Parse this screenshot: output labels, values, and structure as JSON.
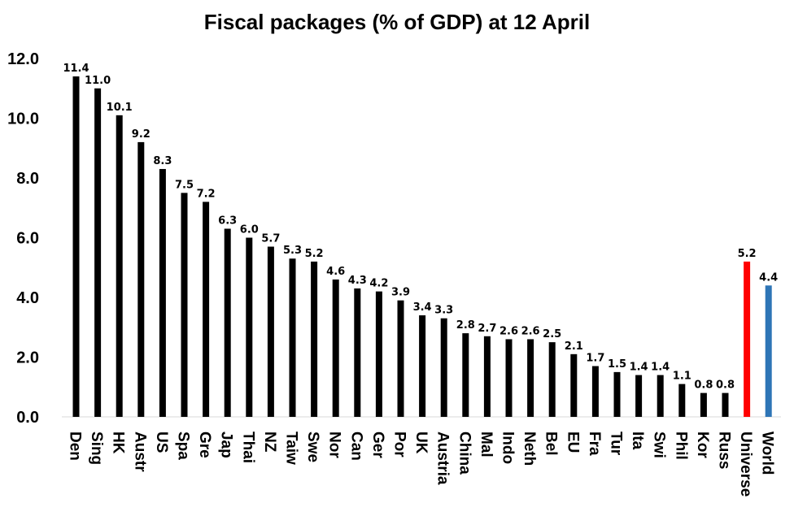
{
  "chart_data": {
    "type": "bar",
    "title": "Fiscal packages (% of GDP) at 12 April",
    "xlabel": "",
    "ylabel": "",
    "ylim": [
      0,
      12
    ],
    "yticks": [
      "0.0",
      "2.0",
      "4.0",
      "6.0",
      "8.0",
      "10.0",
      "12.0"
    ],
    "grid": false,
    "categories": [
      "Den",
      "Sing",
      "HK",
      "Austr",
      "US",
      "Spa",
      "Gre",
      "Jap",
      "Thai",
      "NZ",
      "Taiw",
      "Swe",
      "Nor",
      "Can",
      "Ger",
      "Por",
      "UK",
      "Austria",
      "China",
      "Mal",
      "Indo",
      "Neth",
      "Bel",
      "EU",
      "Fra",
      "Tur",
      "Ita",
      "Swi",
      "Phil",
      "Kor",
      "Russ",
      "Universe",
      "World"
    ],
    "values": [
      11.4,
      11.0,
      10.1,
      9.2,
      8.3,
      7.5,
      7.2,
      6.3,
      6.0,
      5.7,
      5.3,
      5.2,
      4.6,
      4.3,
      4.2,
      3.9,
      3.4,
      3.3,
      2.8,
      2.7,
      2.6,
      2.6,
      2.5,
      2.1,
      1.7,
      1.5,
      1.4,
      1.4,
      1.1,
      0.8,
      0.8,
      5.2,
      4.4
    ],
    "data_labels": [
      "11.4",
      "11.0",
      "10.1",
      "9.2",
      "8.3",
      "7.5",
      "7.2",
      "6.3",
      "6.0",
      "5.7",
      "5.3",
      "5.2",
      "4.6",
      "4.3",
      "4.2",
      "3.9",
      "3.4",
      "3.3",
      "2.8",
      "2.7",
      "2.6",
      "2.6",
      "2.5",
      "2.1",
      "1.7",
      "1.5",
      "1.4",
      "1.4",
      "1.1",
      "0.8",
      "0.8",
      "5.2",
      "4.4"
    ],
    "colors": {
      "default": "#000000",
      "Universe": "#ff0000",
      "World": "#2e75b6"
    }
  }
}
